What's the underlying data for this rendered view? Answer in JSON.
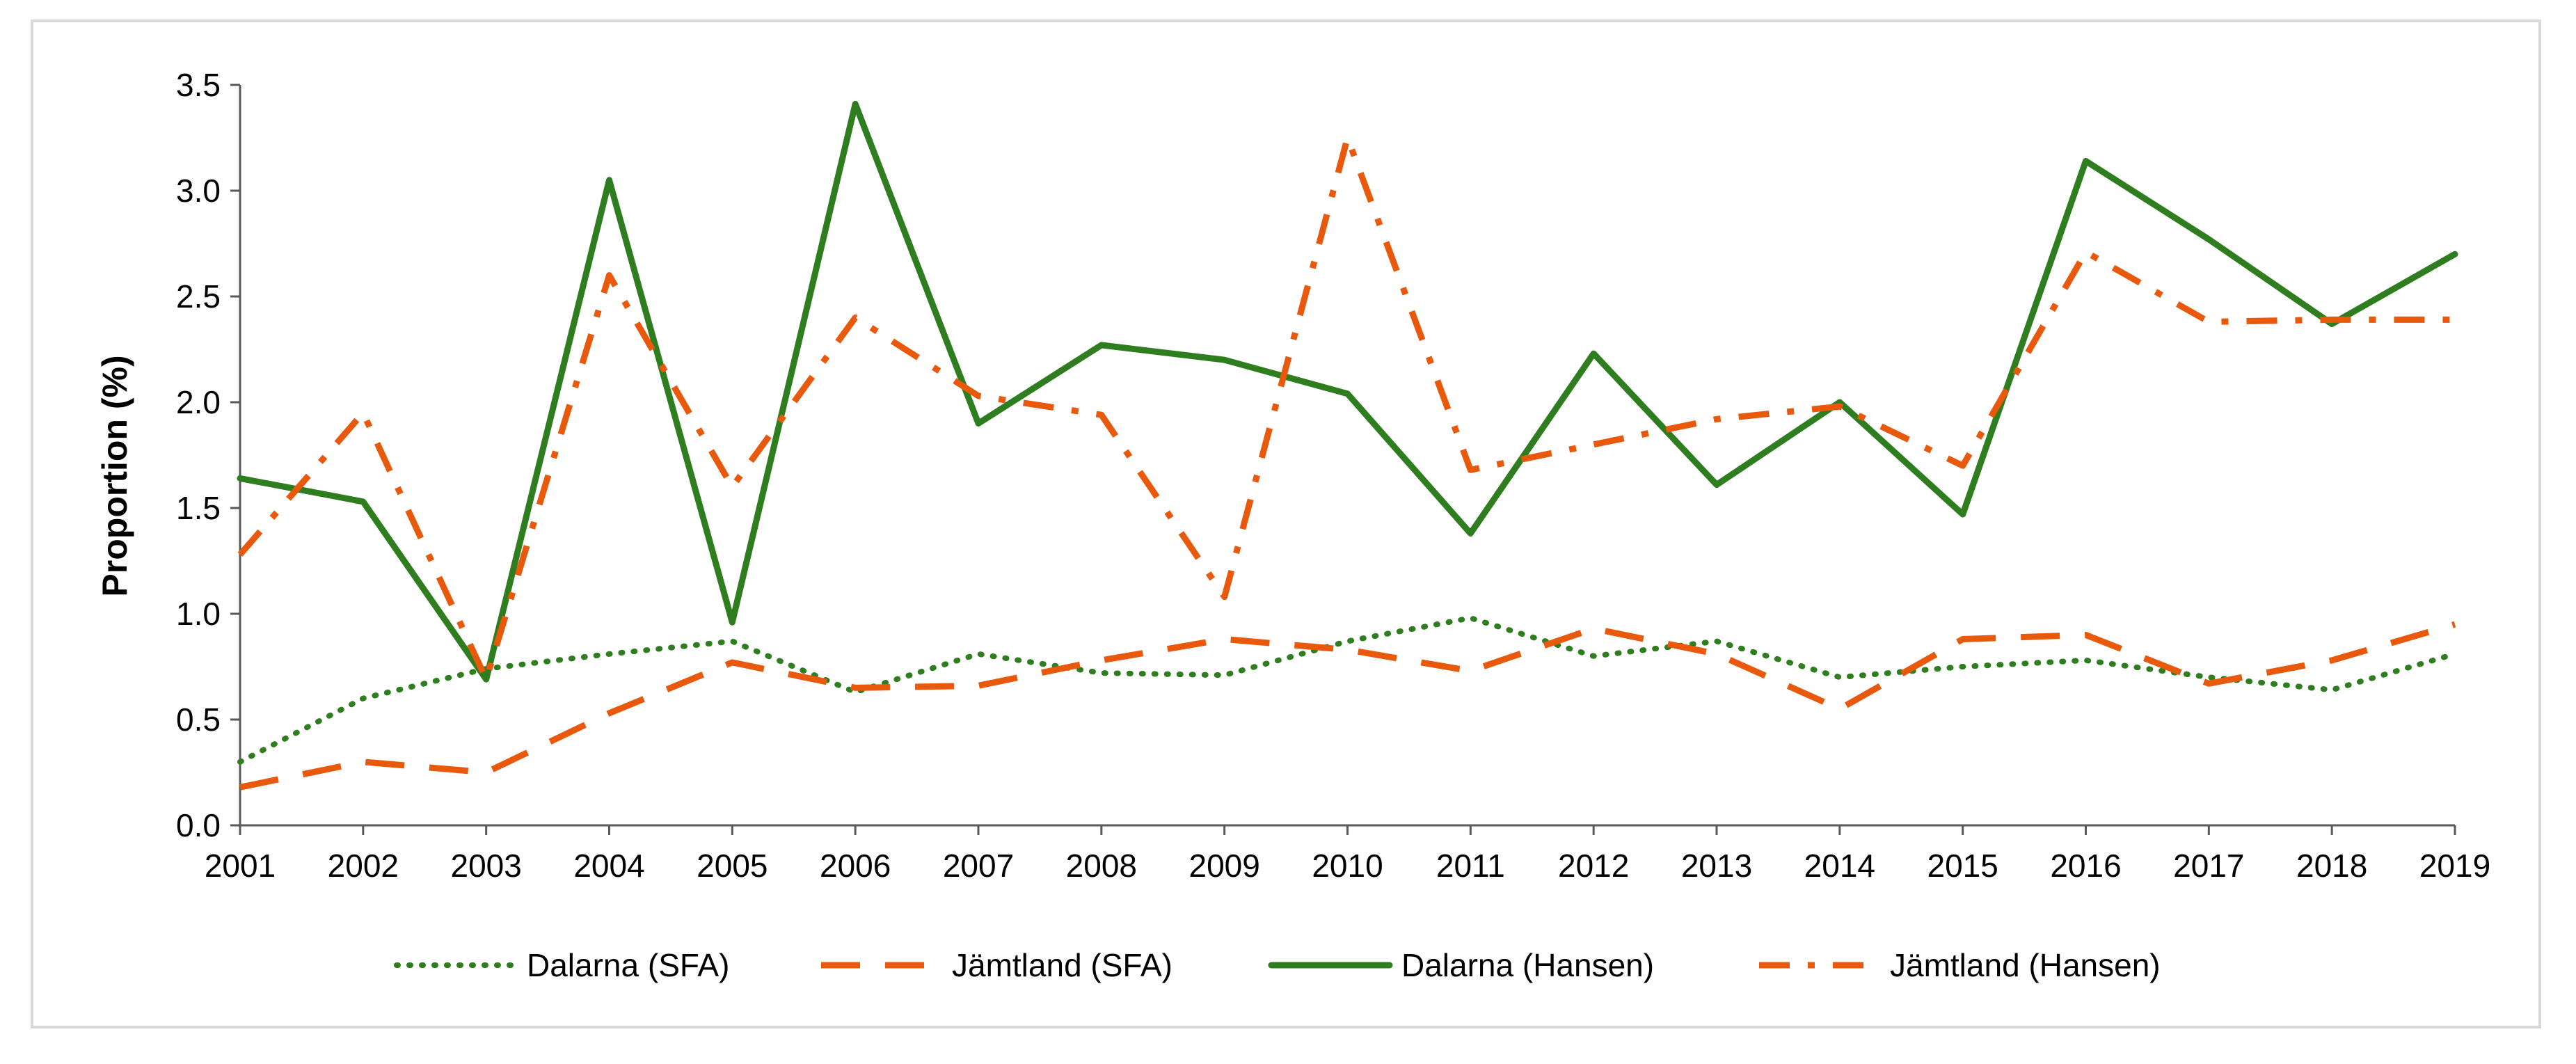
{
  "chart_data": {
    "type": "line",
    "title": "",
    "xlabel": "",
    "ylabel": "Proportion (%)",
    "ylim": [
      0,
      3.5
    ],
    "yticks": [
      "0.0",
      "0.5",
      "1.0",
      "1.5",
      "2.0",
      "2.5",
      "3.0",
      "3.5"
    ],
    "grid": false,
    "legend_position": "bottom",
    "categories": [
      "2001",
      "2002",
      "2003",
      "2004",
      "2005",
      "2006",
      "2007",
      "2008",
      "2009",
      "2010",
      "2011",
      "2012",
      "2013",
      "2014",
      "2015",
      "2016",
      "2017",
      "2018",
      "2019"
    ],
    "series": [
      {
        "name": "Dalarna (SFA)",
        "color": "#2e7d1f",
        "style": "dotted",
        "values": [
          0.3,
          0.6,
          0.74,
          0.81,
          0.87,
          0.63,
          0.81,
          0.72,
          0.71,
          0.87,
          0.98,
          0.8,
          0.87,
          0.7,
          0.75,
          0.78,
          0.7,
          0.64,
          0.81
        ]
      },
      {
        "name": "Jämtland (SFA)",
        "color": "#e8590c",
        "style": "dashed",
        "values": [
          0.18,
          0.3,
          0.25,
          0.53,
          0.77,
          0.65,
          0.66,
          0.78,
          0.88,
          0.83,
          0.73,
          0.93,
          0.81,
          0.55,
          0.88,
          0.9,
          0.67,
          0.78,
          0.95
        ]
      },
      {
        "name": "Dalarna (Hansen)",
        "color": "#2e7d1f",
        "style": "solid",
        "values": [
          1.64,
          1.53,
          0.69,
          3.05,
          0.96,
          3.41,
          1.9,
          2.27,
          2.2,
          2.04,
          1.38,
          2.23,
          1.61,
          2.0,
          1.47,
          3.14,
          2.77,
          2.37,
          2.7
        ]
      },
      {
        "name": "Jämtland (Hansen)",
        "color": "#e8590c",
        "style": "dashdot",
        "values": [
          1.28,
          1.95,
          0.69,
          2.6,
          1.6,
          2.4,
          2.03,
          1.94,
          1.08,
          3.25,
          1.68,
          1.8,
          1.92,
          1.98,
          1.7,
          2.71,
          2.38,
          2.39,
          2.39
        ]
      }
    ]
  }
}
